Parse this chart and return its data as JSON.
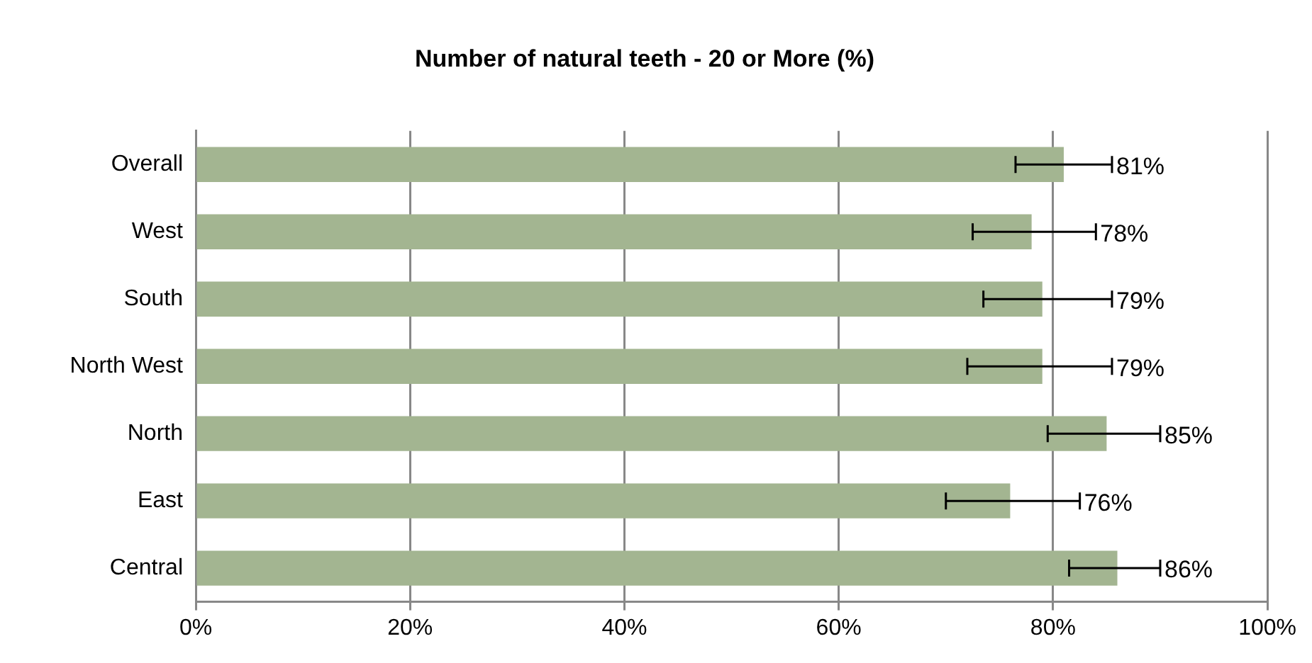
{
  "chart_data": {
    "type": "bar",
    "orientation": "horizontal",
    "title": "Number of natural teeth - 20 or More (%)",
    "categories": [
      "Overall",
      "West",
      "South",
      "North West",
      "North",
      "East",
      "Central"
    ],
    "values": [
      81,
      78,
      79,
      79,
      85,
      76,
      86
    ],
    "value_labels": [
      "81%",
      "78%",
      "79%",
      "79%",
      "85%",
      "76%",
      "86%"
    ],
    "errors": [
      [
        76.5,
        85.5
      ],
      [
        72.5,
        84
      ],
      [
        73.5,
        85.5
      ],
      [
        72,
        85.5
      ],
      [
        79.5,
        90
      ],
      [
        70,
        82.5
      ],
      [
        81.5,
        90
      ]
    ],
    "color": "#a3b591",
    "xlim": [
      0,
      100
    ],
    "xticks": [
      {
        "value": 0,
        "label": "0%"
      },
      {
        "value": 20,
        "label": "20%"
      },
      {
        "value": 40,
        "label": "40%"
      },
      {
        "value": 60,
        "label": "60%"
      },
      {
        "value": 80,
        "label": "80%"
      },
      {
        "value": 100,
        "label": "100%"
      }
    ],
    "grid": "x",
    "legend": false
  }
}
